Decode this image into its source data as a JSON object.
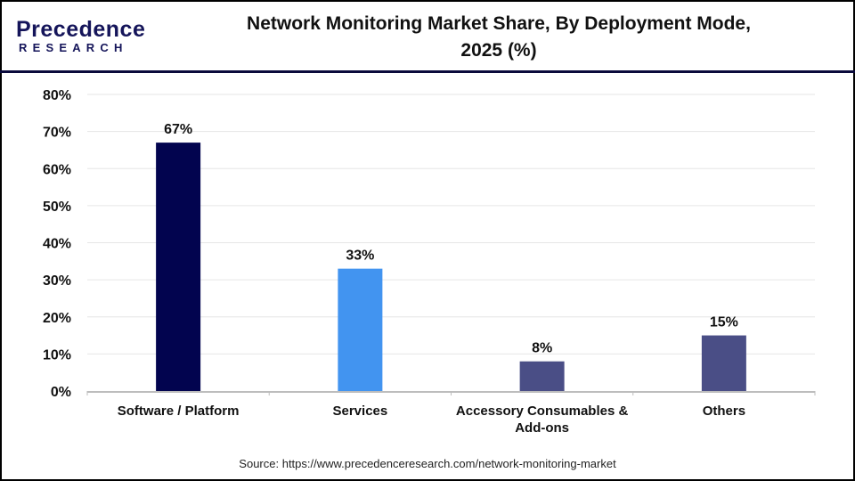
{
  "logo": {
    "text_top": "Precedence",
    "text_bottom": "RESEARCH"
  },
  "chart_data": {
    "type": "bar",
    "title": "Network Monitoring Market Share, By Deployment Mode, 2025 (%)",
    "title_lines": [
      "Network Monitoring Market Share, By Deployment Mode,",
      "2025 (%)"
    ],
    "categories": [
      "Software / Platform",
      "Services",
      "Accessory Consumables & Add-ons",
      "Others"
    ],
    "category_lines": [
      [
        "Software / Platform"
      ],
      [
        "Services"
      ],
      [
        "Accessory Consumables &",
        "Add-ons"
      ],
      [
        "Others"
      ]
    ],
    "values": [
      67,
      33,
      8,
      15
    ],
    "data_labels": [
      "67%",
      "33%",
      "8%",
      "15%"
    ],
    "colors": [
      "#02044f",
      "#4294f0",
      "#4a4e86",
      "#4a4e86"
    ],
    "ylim": [
      0,
      80
    ],
    "yticks": [
      "0%",
      "10%",
      "20%",
      "30%",
      "40%",
      "50%",
      "60%",
      "70%",
      "80%"
    ],
    "grid": true,
    "xlabel": "",
    "ylabel": ""
  },
  "source": "Source: https://www.precedenceresearch.com/network-monitoring-market"
}
